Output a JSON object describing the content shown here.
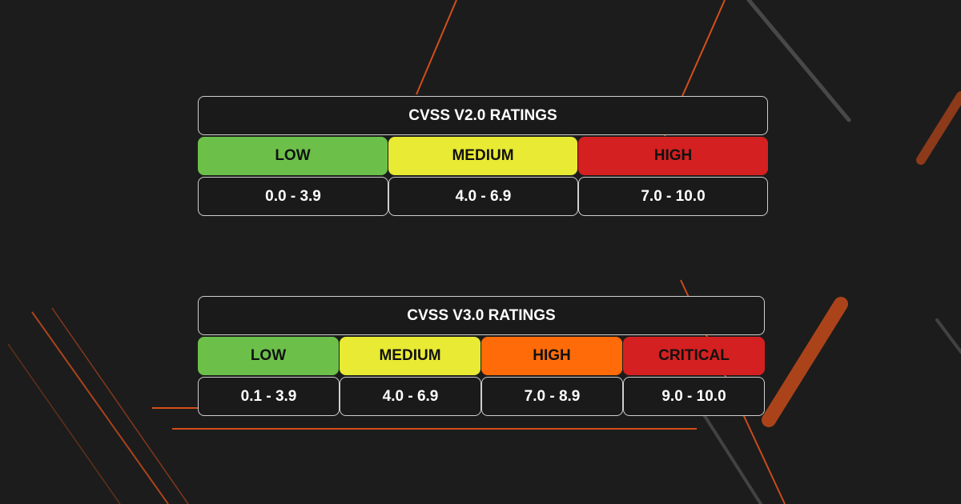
{
  "colors": {
    "low": "#6cc04a",
    "medium": "#e8ea33",
    "high_v2": "#d42020",
    "high_v3": "#ff6b08",
    "critical": "#d42020",
    "accent_lines": "#e8541a"
  },
  "v2": {
    "title": "CVSS V2.0 RATINGS",
    "ratings": [
      {
        "label": "LOW",
        "range": "0.0 - 3.9",
        "color": "#6cc04a"
      },
      {
        "label": "MEDIUM",
        "range": "4.0 - 6.9",
        "color": "#e8ea33"
      },
      {
        "label": "HIGH",
        "range": "7.0 - 10.0",
        "color": "#d42020"
      }
    ]
  },
  "v3": {
    "title": "CVSS V3.0 RATINGS",
    "ratings": [
      {
        "label": "LOW",
        "range": "0.1 - 3.9",
        "color": "#6cc04a"
      },
      {
        "label": "MEDIUM",
        "range": "4.0 - 6.9",
        "color": "#e8ea33"
      },
      {
        "label": "HIGH",
        "range": "7.0 - 8.9",
        "color": "#ff6b08"
      },
      {
        "label": "CRITICAL",
        "range": "9.0 - 10.0",
        "color": "#d42020"
      }
    ]
  }
}
